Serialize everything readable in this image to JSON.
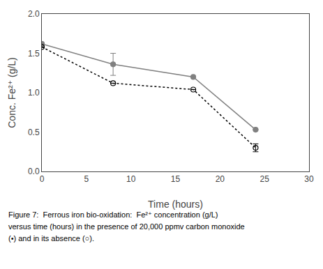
{
  "chart_data": {
    "type": "line",
    "xlabel": "Time (hours)",
    "ylabel": "Conc. Fe²⁺ (g/L)",
    "annotations": [
      "Figure 7:  Ferrous iron bio-oxidation:  Fe²⁺ concentration (g/L)",
      "versus time (hours) in the presence of 20,000 ppmv carbon monoxide",
      "(•) and in its absence (○)."
    ],
    "series": [
      {
        "x": [
          0,
          8,
          17,
          24
        ],
        "values": [
          1.62,
          1.36,
          1.2,
          0.53
        ],
        "yerr_lo": [
          0.0,
          0.14,
          0.0,
          0.0
        ],
        "yerr_hi": [
          0.0,
          0.14,
          0.0,
          0.0
        ],
        "color": "#808080",
        "marker": "circle",
        "line_style": "solid"
      },
      {
        "x": [
          0,
          8,
          17,
          24
        ],
        "values": [
          1.58,
          1.12,
          1.04,
          0.3
        ],
        "yerr_lo": [
          0.0,
          0.0,
          0.0,
          0.05
        ],
        "yerr_hi": [
          0.0,
          0.0,
          0.0,
          0.05
        ],
        "color": "#000000",
        "marker": "circle-open",
        "line_style": "dot"
      }
    ],
    "xlim": [
      0,
      30
    ],
    "ylim": [
      0.0,
      2.0
    ],
    "xticks": [
      0,
      5,
      10,
      15,
      20,
      25,
      30
    ],
    "yticks": [
      {
        "value": 0.0,
        "label": "0.0"
      },
      0.5,
      {
        "value": 1.0,
        "label": "1.0"
      },
      1.5,
      {
        "value": 2.0,
        "label": "2.0"
      }
    ],
    "grid": false
  }
}
